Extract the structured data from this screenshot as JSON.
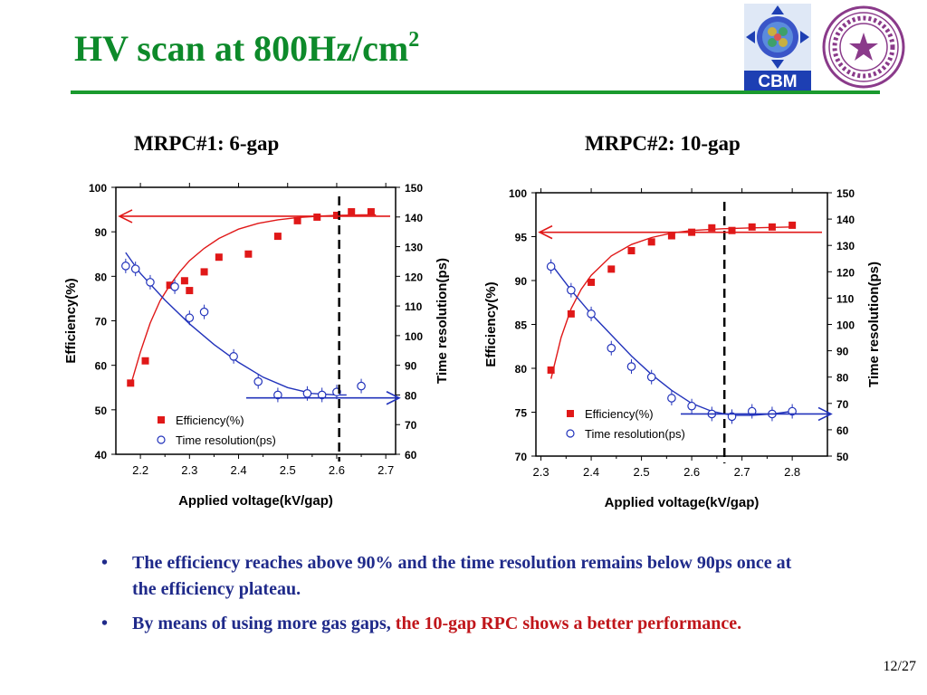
{
  "slide": {
    "title_main": "HV scan at 800Hz/cm",
    "title_sup": "2",
    "page_number": "12/27",
    "cbm_logo_text": "CBM"
  },
  "colors": {
    "title_green": "#0d8a2a",
    "efficiency_red": "#e01818",
    "time_blue": "#2233bb",
    "bullet_blue": "#1f2a8a",
    "highlight_red": "#c0151a"
  },
  "bullets": [
    {
      "parts": [
        {
          "text": "The efficiency reaches  above 90% and the time resolution remains below 90ps once at the efficiency plateau.",
          "color": "blue"
        }
      ]
    },
    {
      "parts": [
        {
          "text": "By means of using more gas gaps, ",
          "color": "blue"
        },
        {
          "text": "the 10-gap RPC shows a better performance.",
          "color": "red"
        }
      ]
    }
  ],
  "chart_data": [
    {
      "type": "scatter",
      "title": "MRPC#1: 6-gap",
      "xlabel": "Applied voltage(kV/gap)",
      "ylabel": "Efficiency(%)",
      "y2label": "Time resolution(ps)",
      "xlim": [
        2.15,
        2.72
      ],
      "ylim": [
        40,
        100
      ],
      "y2lim": [
        60,
        150
      ],
      "xticks": [
        2.2,
        2.3,
        2.4,
        2.5,
        2.6,
        2.7
      ],
      "yticks": [
        40,
        50,
        60,
        70,
        80,
        90,
        100
      ],
      "y2ticks": [
        60,
        70,
        80,
        90,
        100,
        110,
        120,
        130,
        140,
        150
      ],
      "plateau_voltage": 2.605,
      "legend": [
        "Efficiency(%)",
        "Time resolution(ps)"
      ],
      "legend_position": "bottom-left",
      "series": [
        {
          "name": "Efficiency(%)",
          "axis": "left",
          "marker": "filled-square",
          "x": [
            2.18,
            2.21,
            2.26,
            2.29,
            2.3,
            2.33,
            2.36,
            2.42,
            2.48,
            2.52,
            2.56,
            2.6,
            2.63,
            2.67
          ],
          "y": [
            56,
            61,
            78,
            79,
            76.8,
            81,
            84.3,
            85,
            89,
            92.5,
            93.3,
            93.7,
            94.5,
            94.5
          ]
        },
        {
          "name": "Time resolution(ps)",
          "axis": "right",
          "marker": "open-circle",
          "x": [
            2.17,
            2.19,
            2.22,
            2.27,
            2.3,
            2.33,
            2.39,
            2.44,
            2.48,
            2.54,
            2.57,
            2.6,
            2.65
          ],
          "y": [
            123.5,
            122.5,
            118,
            116.5,
            106,
            108,
            93,
            84.5,
            80,
            80.5,
            80,
            81,
            83
          ]
        }
      ],
      "fits": [
        {
          "series": "Efficiency(%)",
          "x": [
            2.18,
            2.2,
            2.22,
            2.24,
            2.26,
            2.28,
            2.3,
            2.33,
            2.36,
            2.4,
            2.44,
            2.48,
            2.52,
            2.56,
            2.6,
            2.65,
            2.68
          ],
          "y": [
            55.5,
            63,
            69.5,
            74.5,
            78,
            81,
            83.5,
            86.3,
            88.5,
            90.6,
            91.9,
            92.7,
            93.2,
            93.5,
            93.7,
            93.8,
            93.8
          ]
        },
        {
          "series": "Time resolution(ps)",
          "x": [
            2.17,
            2.2,
            2.25,
            2.3,
            2.35,
            2.4,
            2.45,
            2.5,
            2.55,
            2.6,
            2.62
          ],
          "y": [
            128,
            121,
            112,
            104,
            97,
            91,
            86,
            82.5,
            80.5,
            80,
            80
          ]
        }
      ],
      "arrows": [
        {
          "series": "Efficiency(%)",
          "direction": "left",
          "level": 93.5
        },
        {
          "series": "Time resolution(ps)",
          "direction": "right",
          "level": 79
        }
      ]
    },
    {
      "type": "scatter",
      "title": "MRPC#2: 10-gap",
      "xlabel": "Applied voltage(kV/gap)",
      "ylabel": "Efficiency(%)",
      "y2label": "Time resolution(ps)",
      "xlim": [
        2.29,
        2.87
      ],
      "ylim": [
        70,
        100
      ],
      "y2lim": [
        50,
        150
      ],
      "xticks": [
        2.3,
        2.4,
        2.5,
        2.6,
        2.7,
        2.8
      ],
      "yticks": [
        70,
        75,
        80,
        85,
        90,
        95,
        100
      ],
      "y2ticks": [
        50,
        60,
        70,
        80,
        90,
        100,
        110,
        120,
        130,
        140,
        150
      ],
      "plateau_voltage": 2.665,
      "legend": [
        "Efficiency(%)",
        "Time resolution(ps)"
      ],
      "legend_position": "bottom-left",
      "series": [
        {
          "name": "Efficiency(%)",
          "axis": "left",
          "marker": "filled-square",
          "x": [
            2.32,
            2.36,
            2.4,
            2.44,
            2.48,
            2.52,
            2.56,
            2.6,
            2.64,
            2.68,
            2.72,
            2.76,
            2.8
          ],
          "y": [
            79.8,
            86.2,
            89.8,
            91.3,
            93.4,
            94.4,
            95.1,
            95.5,
            96.0,
            95.7,
            96.1,
            96.1,
            96.3
          ]
        },
        {
          "name": "Time resolution(ps)",
          "axis": "right",
          "marker": "open-circle",
          "x": [
            2.32,
            2.36,
            2.4,
            2.44,
            2.48,
            2.52,
            2.56,
            2.6,
            2.64,
            2.68,
            2.72,
            2.76,
            2.8
          ],
          "y": [
            122,
            113,
            104,
            91,
            84,
            80,
            72,
            69,
            66,
            65,
            67,
            66,
            67
          ]
        }
      ],
      "fits": [
        {
          "series": "Efficiency(%)",
          "x": [
            2.32,
            2.34,
            2.36,
            2.38,
            2.4,
            2.44,
            2.48,
            2.52,
            2.56,
            2.6,
            2.66,
            2.72,
            2.8
          ],
          "y": [
            78.8,
            83.5,
            86.8,
            89.0,
            90.6,
            92.8,
            94.1,
            94.9,
            95.4,
            95.7,
            95.9,
            96.0,
            96.1
          ]
        },
        {
          "series": "Time resolution(ps)",
          "x": [
            2.32,
            2.36,
            2.4,
            2.44,
            2.48,
            2.52,
            2.56,
            2.6,
            2.64,
            2.68,
            2.72,
            2.76,
            2.8
          ],
          "y": [
            123,
            113,
            104,
            96,
            88,
            81,
            75,
            70,
            67,
            65.5,
            65.5,
            66,
            67
          ]
        }
      ],
      "arrows": [
        {
          "series": "Efficiency(%)",
          "direction": "left",
          "level": 95.5
        },
        {
          "series": "Time resolution(ps)",
          "direction": "right",
          "level": 66
        }
      ]
    }
  ]
}
